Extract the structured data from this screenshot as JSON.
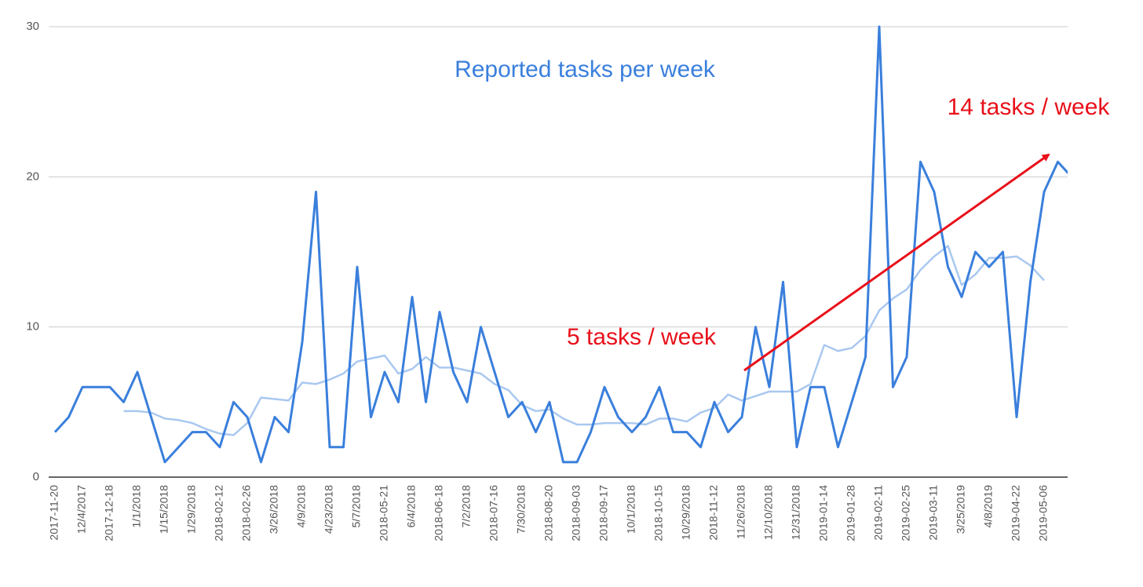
{
  "chart_data": {
    "type": "line",
    "title": "Reported tasks per week",
    "annotations": [
      "5 tasks / week",
      "14 tasks / week"
    ],
    "categories": [
      "2017-11-20",
      null,
      "12/4/2017",
      null,
      "2017-12-18",
      null,
      "1/1/2018",
      null,
      "1/15/2018",
      null,
      "1/29/2018",
      null,
      "2018-02-12",
      null,
      "2018-02-26",
      null,
      "3/26/2018",
      null,
      "4/9/2018",
      null,
      "4/23/2018",
      null,
      "5/7/2018",
      null,
      "2018-05-21",
      null,
      "6/4/2018",
      null,
      "2018-06-18",
      null,
      "7/2/2018",
      null,
      "2018-07-16",
      null,
      "7/30/2018",
      null,
      "2018-08-20",
      null,
      "2018-09-03",
      null,
      "2018-09-17",
      null,
      "10/1/2018",
      null,
      "2018-10-15",
      null,
      "10/29/2018",
      null,
      "2018-11-12",
      null,
      "11/26/2018",
      null,
      "12/10/2018",
      null,
      "12/31/2018",
      null,
      "2019-01-14",
      null,
      "2019-01-28",
      null,
      "2019-02-11",
      null,
      "2019-02-25",
      null,
      "2019-03-11",
      null,
      "3/25/2019",
      null,
      "4/8/2019",
      null,
      "2019-04-22",
      null,
      "2019-05-06",
      null,
      null
    ],
    "series": [
      {
        "color": "#3a7fdc",
        "values": [
          3,
          4,
          6,
          6,
          6,
          5,
          7,
          4,
          1,
          2,
          3,
          3,
          2,
          5,
          4,
          1,
          4,
          3,
          9,
          19,
          2,
          2,
          14,
          4,
          7,
          5,
          12,
          5,
          11,
          7,
          5,
          10,
          7,
          4,
          5,
          3,
          5,
          1,
          1,
          3,
          6,
          4,
          3,
          4,
          6,
          3,
          3,
          2,
          5,
          3,
          4,
          10,
          6,
          13,
          2,
          6,
          6,
          2,
          5,
          8,
          30,
          6,
          8,
          21,
          19,
          14,
          12,
          15,
          14,
          15,
          4,
          13,
          19,
          21,
          20
        ]
      },
      {
        "color": "#a9c8f0",
        "values": [
          null,
          null,
          null,
          null,
          null,
          4.4,
          4.4,
          4.3,
          3.9,
          3.8,
          3.6,
          3.2,
          2.9,
          2.8,
          3.6,
          5.3,
          5.2,
          5.1,
          6.3,
          6.2,
          6.5,
          6.9,
          7.7,
          7.9,
          8.1,
          6.9,
          7.2,
          8.0,
          7.3,
          7.3,
          7.1,
          6.9,
          6.2,
          5.8,
          4.8,
          4.4,
          4.5,
          3.9,
          3.5,
          3.5,
          3.6,
          3.6,
          3.6,
          3.5,
          3.9,
          3.9,
          3.7,
          4.3,
          4.6,
          5.5,
          5.1,
          5.4,
          5.7,
          5.7,
          5.7,
          6.2,
          8.8,
          8.4,
          8.6,
          9.4,
          11.1,
          11.9,
          12.5,
          13.8,
          14.7,
          15.4,
          12.8,
          13.5,
          14.6,
          14.6,
          14.7,
          14.1,
          13.1,
          null,
          null
        ]
      }
    ],
    "ylim": [
      0,
      30
    ],
    "yticks": [
      0,
      10,
      20,
      30
    ],
    "grid": true
  }
}
